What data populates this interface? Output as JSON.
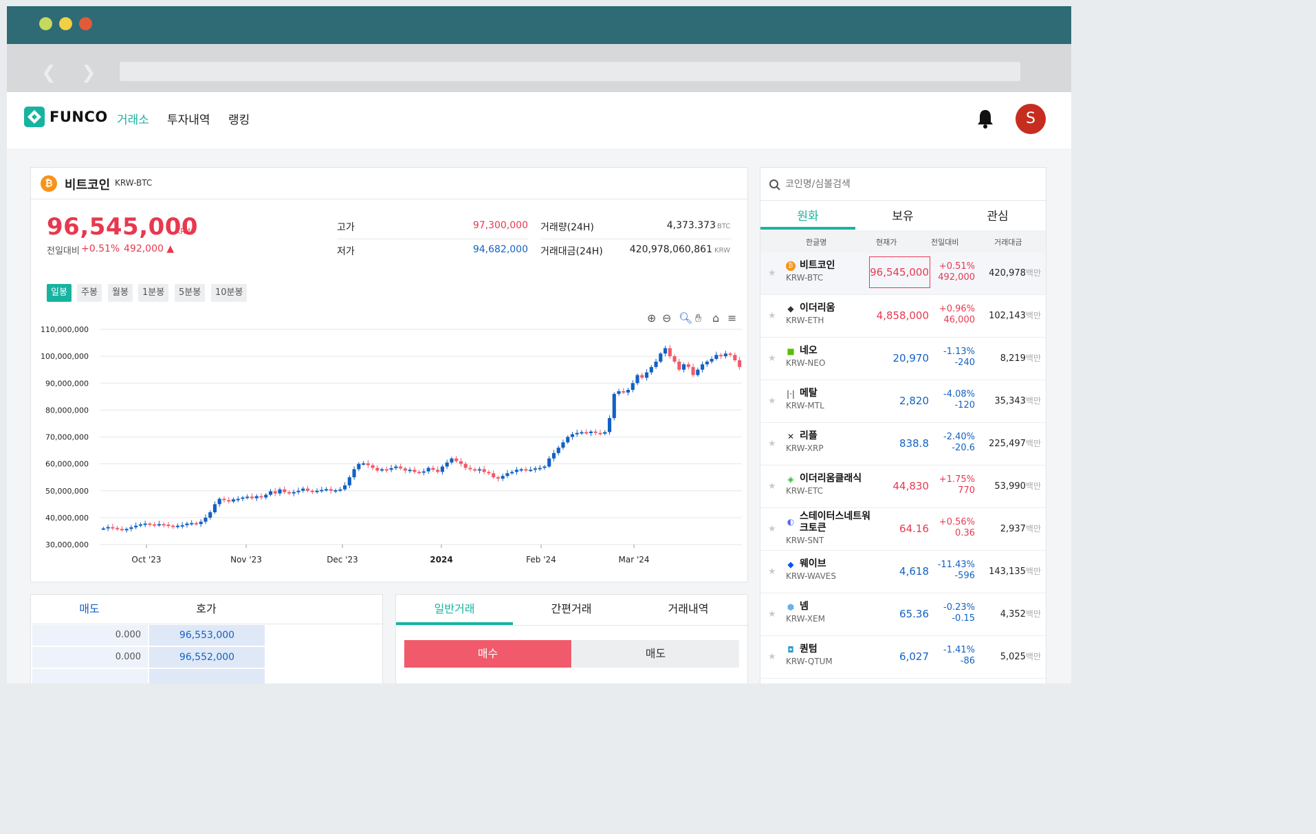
{
  "browser": {
    "controls": [
      "close",
      "minimize",
      "maximize"
    ]
  },
  "nav": {
    "logo": "FUNCO",
    "menu": [
      "거래소",
      "투자내역",
      "랭킹"
    ],
    "avatar": "S"
  },
  "coin": {
    "name": "비트코인",
    "code": "KRW-BTC",
    "price": "96,545,000",
    "unit": "KRW",
    "diff_label": "전일대비",
    "diff_pct": "+0.51%",
    "diff_amt": "492,000 ▲",
    "high_label": "고가",
    "high": "97,300,000",
    "low_label": "저가",
    "low": "94,682,000",
    "vol_label": "거래량(24H)",
    "vol": "4,373.373",
    "vol_unit": "BTC",
    "amt_label": "거래대금(24H)",
    "amt": "420,978,060,861",
    "amt_unit": "KRW"
  },
  "periods": [
    "일봉",
    "주봉",
    "월봉",
    "1분봉",
    "5분봉",
    "10분봉"
  ],
  "chart_data": {
    "type": "candlestick",
    "y_ticks": [
      "110,000,000",
      "100,000,000",
      "90,000,000",
      "80,000,000",
      "70,000,000",
      "60,000,000",
      "50,000,000",
      "40,000,000",
      "30,000,000"
    ],
    "ylim": [
      30000000,
      110000000
    ],
    "x_ticks": [
      "Oct '23",
      "Nov '23",
      "Dec '23",
      "2024",
      "Feb '24",
      "Mar '24"
    ],
    "close_values": [
      36,
      36.5,
      36.2,
      35.8,
      35.5,
      35.8,
      36.4,
      37,
      37.5,
      37.8,
      37.5,
      37.2,
      37.6,
      37.4,
      37,
      36.5,
      37,
      37.2,
      37.8,
      38,
      37.6,
      38.5,
      40,
      42,
      45,
      47,
      46.5,
      46,
      46.8,
      47,
      47.5,
      47.8,
      47.2,
      48,
      47.5,
      48.5,
      49.8,
      49,
      50.5,
      49.5,
      49,
      49.5,
      50,
      50.8,
      50,
      49.8,
      50,
      50.3,
      50.6,
      50,
      50.2,
      50.5,
      52,
      55,
      58,
      60,
      60.2,
      59.5,
      58.5,
      57.5,
      58,
      57.8,
      58.4,
      59,
      58.3,
      57.5,
      57.8,
      57,
      56.8,
      57.2,
      58.5,
      57.8,
      57,
      59,
      60.5,
      62,
      61,
      60,
      58.5,
      58,
      57.5,
      58,
      57,
      56.5,
      55,
      54.5,
      55.5,
      56.5,
      57,
      57.8,
      58,
      57.6,
      57.8,
      58.3,
      58.5,
      59,
      62,
      64,
      66,
      68,
      70,
      71,
      71.5,
      71.8,
      71.4,
      72,
      71.5,
      71.2,
      71.8,
      77,
      86,
      87,
      86.5,
      87.5,
      90,
      93,
      92,
      94,
      96,
      98,
      101,
      103,
      100,
      98,
      95,
      97,
      96,
      93,
      95,
      97,
      98,
      99,
      100.5,
      100,
      101,
      100.5,
      98.5,
      96
    ]
  },
  "orderbook": {
    "tabs": [
      "매도",
      "호가"
    ],
    "rows": [
      {
        "qty": "0.000",
        "price": "96,553,000"
      },
      {
        "qty": "0.000",
        "price": "96,552,000"
      }
    ]
  },
  "trade": {
    "tabs": [
      "일반거래",
      "간편거래",
      "거래내역"
    ],
    "buy": "매수",
    "sell": "매도"
  },
  "market": {
    "search_placeholder": "코인명/심볼검색",
    "tabs": [
      "원화",
      "보유",
      "관심"
    ],
    "headers": [
      "한글명",
      "현재가",
      "전일대비",
      "거래대금"
    ],
    "unit": "백만",
    "rows": [
      {
        "name": "비트코인",
        "sym": "KRW-BTC",
        "icon": "bitcoin-icon",
        "glyph": "₿",
        "price": "96,545,000",
        "pct": "+0.51%",
        "amt": "492,000",
        "vol": "420,978",
        "dir": "up"
      },
      {
        "name": "이더리움",
        "sym": "KRW-ETH",
        "icon": "ethereum-icon",
        "glyph": "◆",
        "price": "4,858,000",
        "pct": "+0.96%",
        "amt": "46,000",
        "vol": "102,143",
        "dir": "up"
      },
      {
        "name": "네오",
        "sym": "KRW-NEO",
        "icon": "neo-icon",
        "glyph": "■",
        "price": "20,970",
        "pct": "-1.13%",
        "amt": "-240",
        "vol": "8,219",
        "dir": "down"
      },
      {
        "name": "메탈",
        "sym": "KRW-MTL",
        "icon": "metal-icon",
        "glyph": "|·|",
        "price": "2,820",
        "pct": "-4.08%",
        "amt": "-120",
        "vol": "35,343",
        "dir": "down"
      },
      {
        "name": "리플",
        "sym": "KRW-XRP",
        "icon": "ripple-icon",
        "glyph": "✕",
        "price": "838.8",
        "pct": "-2.40%",
        "amt": "-20.6",
        "vol": "225,497",
        "dir": "down"
      },
      {
        "name": "이더리움클래식",
        "sym": "KRW-ETC",
        "icon": "ethereum-classic-icon",
        "glyph": "◈",
        "price": "44,830",
        "pct": "+1.75%",
        "amt": "770",
        "vol": "53,990",
        "dir": "up"
      },
      {
        "name": "스테이터스네트워크토큰",
        "sym": "KRW-SNT",
        "icon": "status-icon",
        "glyph": "◐",
        "price": "64.16",
        "pct": "+0.56%",
        "amt": "0.36",
        "vol": "2,937",
        "dir": "up"
      },
      {
        "name": "웨이브",
        "sym": "KRW-WAVES",
        "icon": "waves-icon",
        "glyph": "◆",
        "price": "4,618",
        "pct": "-11.43%",
        "amt": "-596",
        "vol": "143,135",
        "dir": "down"
      },
      {
        "name": "넴",
        "sym": "KRW-XEM",
        "icon": "nem-icon",
        "glyph": "⬢",
        "price": "65.36",
        "pct": "-0.23%",
        "amt": "-0.15",
        "vol": "4,352",
        "dir": "down"
      },
      {
        "name": "퀀텀",
        "sym": "KRW-QTUM",
        "icon": "qtum-icon",
        "glyph": "◘",
        "price": "6,027",
        "pct": "-1.41%",
        "amt": "-86",
        "vol": "5,025",
        "dir": "down"
      }
    ]
  },
  "colors": {
    "accent": "#17b3a0",
    "up": "#e8384f",
    "down": "#1261c4",
    "titlebar": "#2e6b75"
  }
}
